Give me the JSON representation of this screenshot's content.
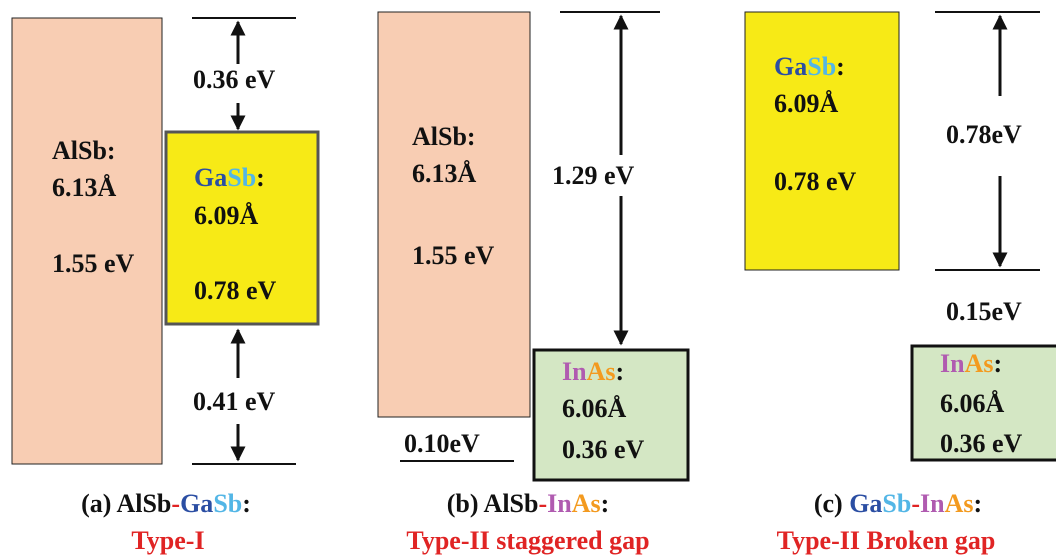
{
  "colors": {
    "alsb": "#f8cdb3",
    "gasb": "#f7ea16",
    "inas": "#d4e7c4",
    "ga": "#2b4ea3",
    "sb": "#53b6e6",
    "in": "#b05bb0",
    "as": "#f39a1f",
    "red": "#e02424",
    "dash": "#e02424",
    "text": "#111111"
  },
  "panel_a": {
    "alsb": {
      "name": "AlSb:",
      "lattice": "6.13Å",
      "gap": "1.55 eV"
    },
    "gasb": {
      "el1": "Ga",
      "el2": "Sb",
      "colon": ":",
      "lattice": "6.09Å",
      "gap": "0.78 eV"
    },
    "offset_top": "0.36 eV",
    "offset_bottom": "0.41 eV",
    "caption": {
      "prefix": "(a) AlSb",
      "dash": "-",
      "el1": "Ga",
      "el2": "Sb",
      "suffix": ":",
      "type": "Type-I"
    }
  },
  "panel_b": {
    "alsb": {
      "name": "AlSb:",
      "lattice": "6.13Å",
      "gap": "1.55 eV"
    },
    "inas": {
      "el1": "In",
      "el2": "As",
      "colon": ":",
      "lattice": "6.06Å",
      "gap": "0.36 eV"
    },
    "offset_top": "1.29 eV",
    "offset_bottom": "0.10eV",
    "caption": {
      "prefix": "(b) AlSb",
      "dash": "-",
      "el1": "In",
      "el2": "As",
      "suffix": ":",
      "type": "Type-II staggered gap"
    }
  },
  "panel_c": {
    "gasb": {
      "el1": "Ga",
      "el2": "Sb",
      "colon": ":",
      "lattice": "6.09Å",
      "gap": "0.78 eV"
    },
    "inas": {
      "el1": "In",
      "el2": "As",
      "colon": ":",
      "lattice": "6.06Å",
      "gap": "0.36 eV"
    },
    "offset_top": "0.78eV",
    "offset_bottom": "0.15eV",
    "caption": {
      "prefix": "(c) ",
      "el1": "Ga",
      "el2": "Sb",
      "dash": "-",
      "el3": "In",
      "el4": "As",
      "suffix": ":",
      "type": "Type-II Broken gap"
    }
  }
}
